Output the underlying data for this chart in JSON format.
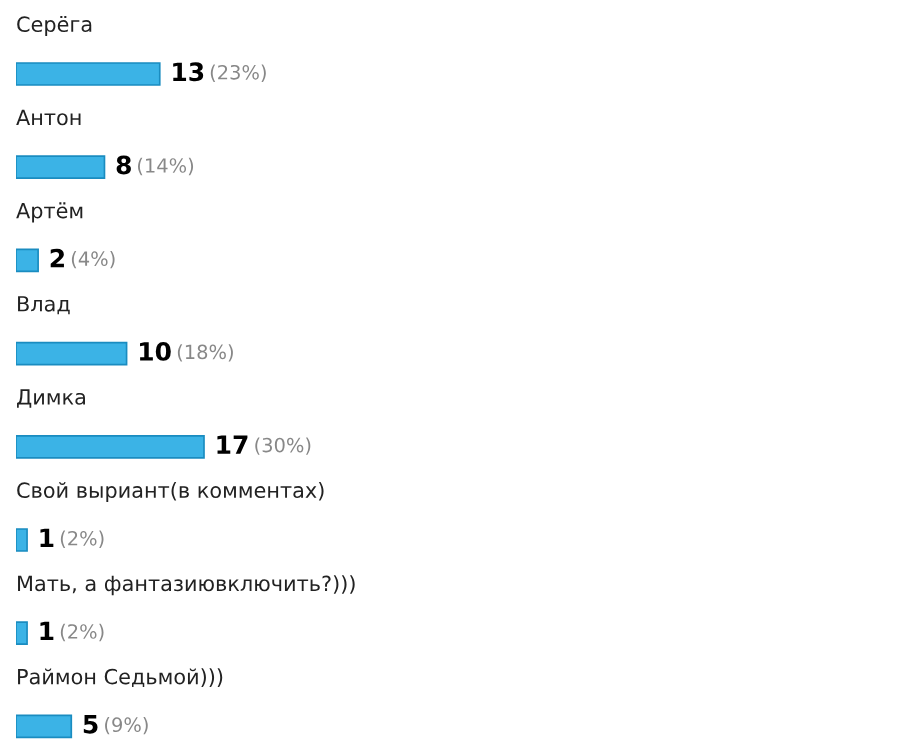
{
  "chart_data": {
    "type": "bar",
    "orientation": "horizontal",
    "categories": [
      "Серёга",
      "Антон",
      "Артём",
      "Влад",
      "Димка",
      "Свой выриант(в комментах)",
      "Мать, а фантазиювключить?)))",
      "Раймон Седьмой)))"
    ],
    "values": [
      13,
      8,
      2,
      10,
      17,
      1,
      1,
      5
    ],
    "value_labels": [
      "13 (23%)",
      "8 (14%)",
      "2 (4%)",
      "10 (18%)",
      "17 (30%)",
      "1 (2%)",
      "1 (2%)",
      "5 (9%)"
    ],
    "color": "#3bb3e6"
  }
}
